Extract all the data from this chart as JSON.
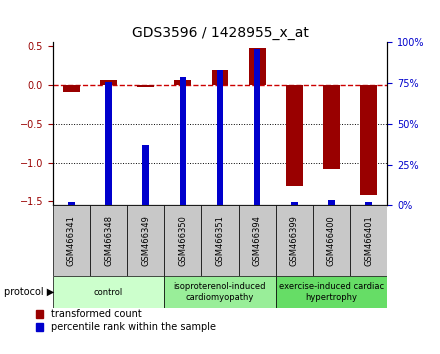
{
  "title": "GDS3596 / 1428955_x_at",
  "samples": [
    "GSM466341",
    "GSM466348",
    "GSM466349",
    "GSM466350",
    "GSM466351",
    "GSM466394",
    "GSM466399",
    "GSM466400",
    "GSM466401"
  ],
  "red_values": [
    -0.09,
    0.07,
    -0.02,
    0.07,
    0.2,
    0.48,
    -1.3,
    -1.08,
    -1.42
  ],
  "blue_values_pct": [
    2,
    76,
    37,
    79,
    83,
    96,
    2,
    3,
    2
  ],
  "ylim_left": [
    -1.55,
    0.55
  ],
  "ylim_right": [
    0,
    100
  ],
  "right_yticks": [
    0,
    25,
    50,
    75,
    100
  ],
  "left_yticks": [
    -1.5,
    -1.0,
    -0.5,
    0.0,
    0.5
  ],
  "hline_y": 0.0,
  "dotted_lines": [
    -0.5,
    -1.0
  ],
  "red_color": "#990000",
  "blue_color": "#0000cc",
  "dashed_color": "#cc0000",
  "groups": [
    {
      "label": "control",
      "start": 0,
      "end": 3,
      "color": "#ccffcc"
    },
    {
      "label": "isoproterenol-induced\ncardiomyopathy",
      "start": 3,
      "end": 6,
      "color": "#99ee99"
    },
    {
      "label": "exercise-induced cardiac\nhypertrophy",
      "start": 6,
      "end": 9,
      "color": "#66dd66"
    }
  ],
  "legend_red": "transformed count",
  "legend_blue": "percentile rank within the sample",
  "protocol_label": "protocol",
  "title_fontsize": 10,
  "tick_fontsize": 7,
  "group_fontsize": 6,
  "sample_fontsize": 6,
  "legend_fontsize": 7,
  "protocol_fontsize": 7,
  "red_bar_width": 0.45,
  "blue_bar_width": 0.18,
  "figure_width": 4.4,
  "figure_height": 3.54,
  "figure_dpi": 100
}
